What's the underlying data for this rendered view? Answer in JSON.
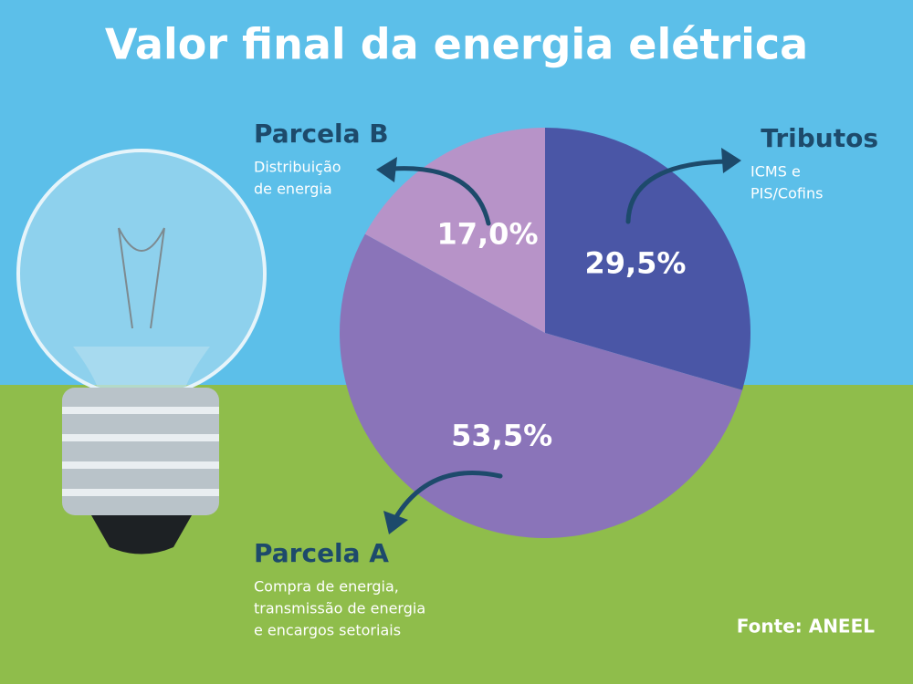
{
  "chart_data": {
    "type": "pie",
    "title": "Valor final da energia elétrica",
    "categories": [
      "Tributos",
      "Parcela A",
      "Parcela B"
    ],
    "descriptions": [
      [
        "ICMS e",
        "PIS/Cofins"
      ],
      [
        "Compra de energia,",
        "transmissão de energia",
        "e encargos setoriais"
      ],
      [
        "Distribuição",
        "de energia"
      ]
    ],
    "values": [
      29.5,
      53.5,
      17.0
    ],
    "value_labels": [
      "29,5%",
      "53,5%",
      "17,0%"
    ],
    "colors": [
      "#4a56a6",
      "#8a74b9",
      "#b793c8"
    ],
    "source": "Fonte: ANEEL"
  }
}
